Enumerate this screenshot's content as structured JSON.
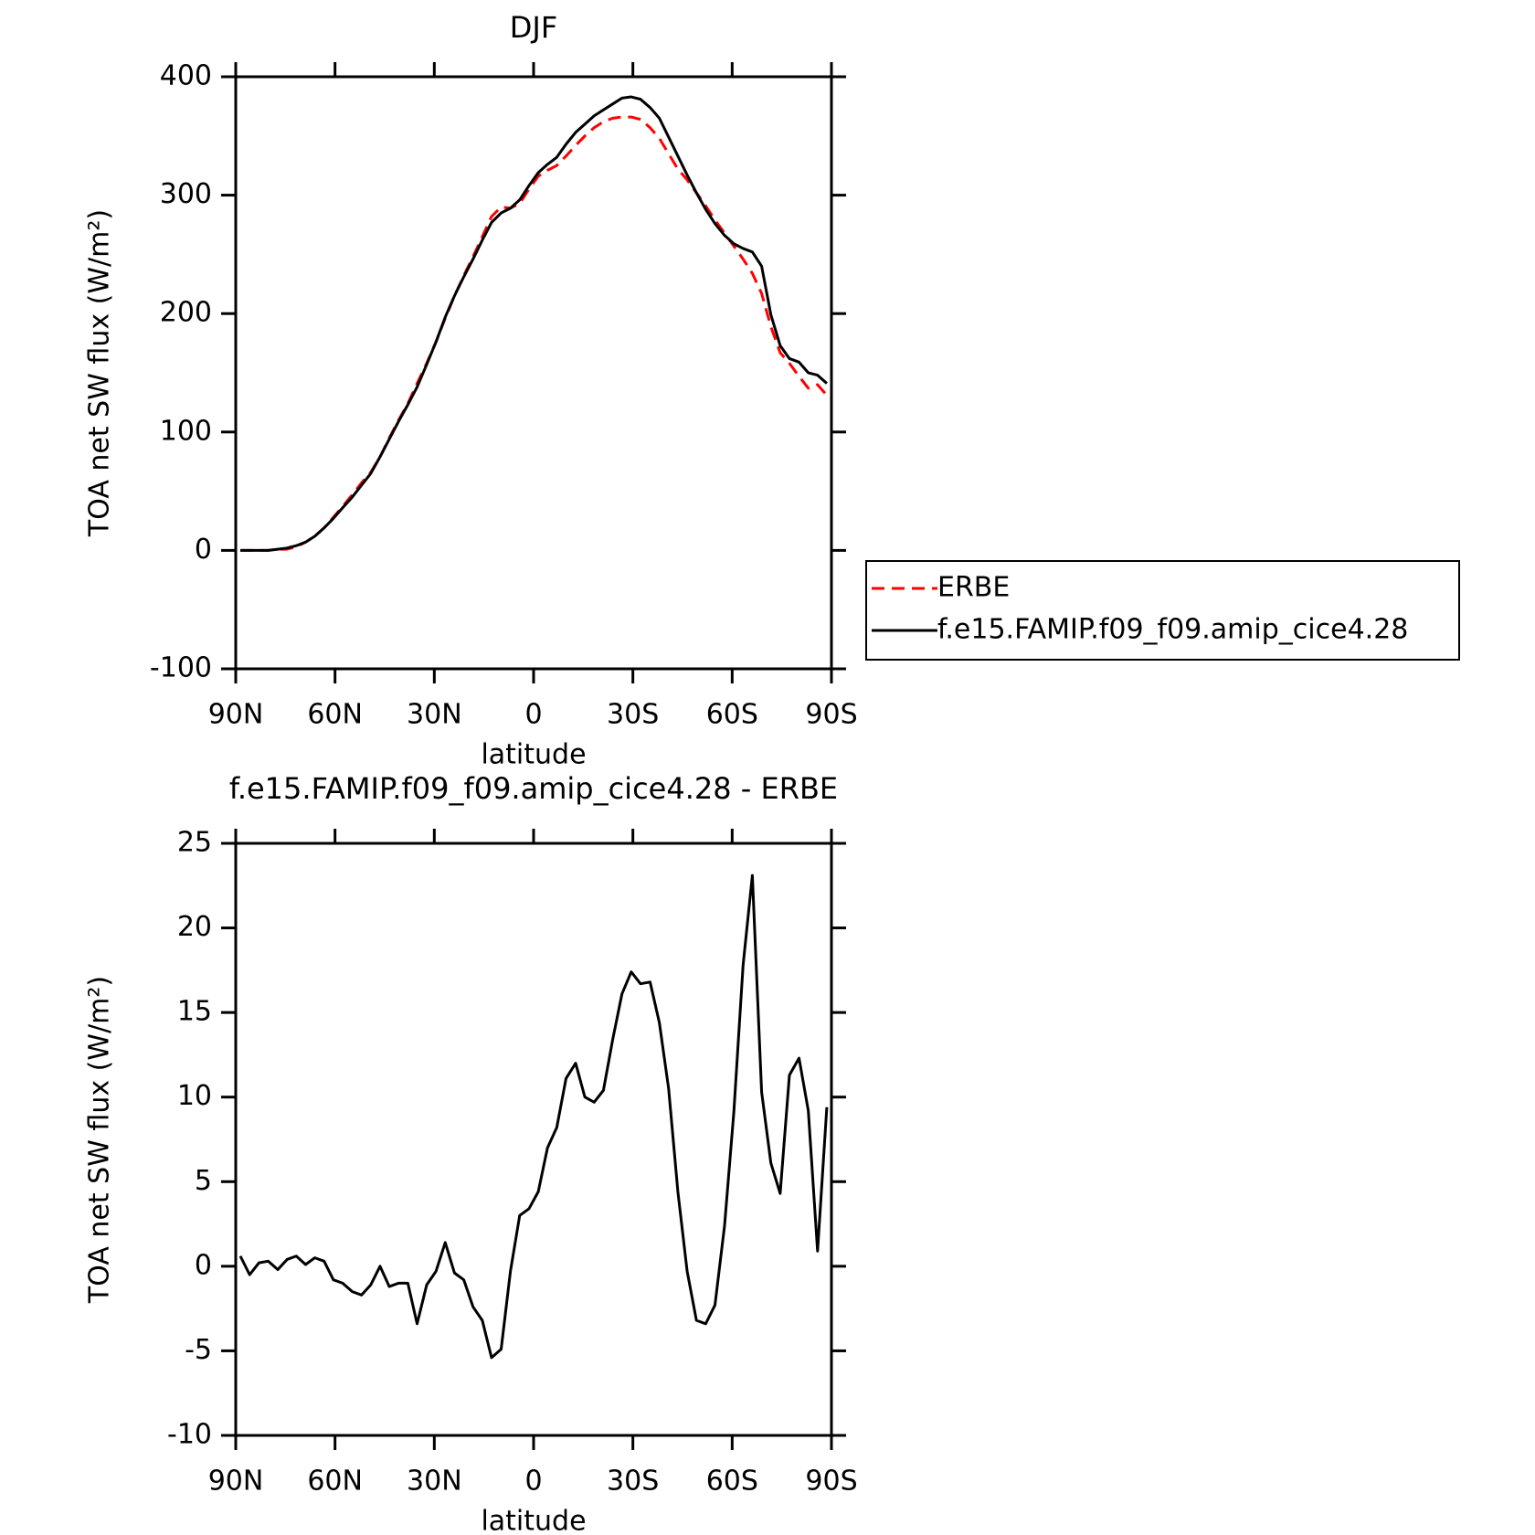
{
  "chart_data": [
    {
      "type": "line",
      "title": "DJF",
      "xlabel": "latitude",
      "ylabel": "TOA net SW flux (W/m²)",
      "x": [
        88.6,
        85.8,
        83.0,
        80.2,
        77.3,
        74.5,
        71.7,
        68.9,
        66.1,
        63.3,
        60.5,
        57.7,
        54.8,
        52.0,
        49.2,
        46.4,
        43.6,
        40.8,
        38.0,
        35.2,
        32.3,
        29.5,
        26.7,
        23.9,
        21.1,
        18.3,
        15.5,
        12.7,
        9.8,
        7.0,
        4.2,
        1.4,
        -1.4,
        -4.2,
        -7.0,
        -9.8,
        -12.7,
        -15.5,
        -18.3,
        -21.1,
        -23.9,
        -26.7,
        -29.5,
        -32.3,
        -35.2,
        -38.0,
        -40.8,
        -43.6,
        -46.4,
        -49.2,
        -52.0,
        -54.8,
        -57.7,
        -60.5,
        -63.3,
        -66.1,
        -68.9,
        -71.7,
        -74.5,
        -77.3,
        -80.2,
        -83.0,
        -85.8,
        -88.6
      ],
      "xlim": [
        90,
        -90
      ],
      "xticks": [
        {
          "value": 90,
          "label": "90N"
        },
        {
          "value": 60,
          "label": "60N"
        },
        {
          "value": 30,
          "label": "30N"
        },
        0,
        {
          "value": -30,
          "label": "30S"
        },
        {
          "value": -60,
          "label": "60S"
        },
        {
          "value": -90,
          "label": "90S"
        }
      ],
      "ylim": [
        -100,
        400
      ],
      "yticks": [
        -100,
        0,
        100,
        200,
        300,
        400
      ],
      "legend": "outside-right",
      "series": [
        {
          "name": "ERBE",
          "color": "#ff0000",
          "line_style": "dashed",
          "values": [
            0,
            0,
            0,
            0,
            1,
            1,
            3,
            7,
            12,
            19,
            28,
            37,
            47,
            57,
            66,
            79,
            95,
            110,
            124,
            141,
            158,
            176,
            196,
            215,
            232,
            248,
            265,
            282,
            290,
            289,
            293,
            305,
            316,
            321,
            325,
            333,
            342,
            350,
            357,
            362,
            365,
            366,
            366,
            364,
            357,
            348,
            335,
            322,
            313,
            302,
            291,
            279,
            268,
            257,
            246,
            234,
            217,
            189,
            167,
            158,
            147,
            137,
            140,
            131
          ]
        },
        {
          "name": "f.e15.FAMIP.f09_f09.amip_cice4.28",
          "color": "#000000",
          "line_style": "solid",
          "values": [
            0,
            0,
            0,
            0,
            1,
            2,
            4,
            7,
            12,
            19,
            27,
            36,
            45,
            55,
            65,
            79,
            94,
            109,
            123,
            138,
            157,
            176,
            197,
            215,
            231,
            246,
            262,
            277,
            285,
            289,
            296,
            308,
            319,
            326,
            332,
            343,
            353,
            360,
            367,
            372,
            377,
            382,
            383,
            381,
            374,
            365,
            349,
            333,
            317,
            302,
            288,
            276,
            266,
            259,
            255,
            252,
            240,
            199,
            173,
            162,
            159,
            150,
            148,
            141
          ]
        }
      ]
    },
    {
      "type": "line",
      "title": "f.e15.FAMIP.f09_f09.amip_cice4.28 - ERBE",
      "xlabel": "latitude",
      "ylabel": "TOA net SW flux (W/m²)",
      "x": [
        88.6,
        85.8,
        83.0,
        80.2,
        77.3,
        74.5,
        71.7,
        68.9,
        66.1,
        63.3,
        60.5,
        57.7,
        54.8,
        52.0,
        49.2,
        46.4,
        43.6,
        40.8,
        38.0,
        35.2,
        32.3,
        29.5,
        26.7,
        23.9,
        21.1,
        18.3,
        15.5,
        12.7,
        9.8,
        7.0,
        4.2,
        1.4,
        -1.4,
        -4.2,
        -7.0,
        -9.8,
        -12.7,
        -15.5,
        -18.3,
        -21.1,
        -23.9,
        -26.7,
        -29.5,
        -32.3,
        -35.2,
        -38.0,
        -40.8,
        -43.6,
        -46.4,
        -49.2,
        -52.0,
        -54.8,
        -57.7,
        -60.5,
        -63.3,
        -66.1,
        -68.9,
        -71.7,
        -74.5,
        -77.3,
        -80.2,
        -83.0,
        -85.8,
        -88.6
      ],
      "xlim": [
        90,
        -90
      ],
      "xticks": [
        {
          "value": 90,
          "label": "90N"
        },
        {
          "value": 60,
          "label": "60N"
        },
        {
          "value": 30,
          "label": "30N"
        },
        0,
        {
          "value": -30,
          "label": "30S"
        },
        {
          "value": -60,
          "label": "60S"
        },
        {
          "value": -90,
          "label": "90S"
        }
      ],
      "ylim": [
        -10,
        25
      ],
      "yticks": [
        -10,
        -5,
        0,
        5,
        10,
        15,
        20,
        25
      ],
      "color": "#000000",
      "values": [
        0.6,
        -0.5,
        0.2,
        0.3,
        -0.2,
        0.4,
        0.6,
        0.1,
        0.5,
        0.3,
        -0.8,
        -1.0,
        -1.5,
        -1.7,
        -1.1,
        0.0,
        -1.2,
        -1.0,
        -1.0,
        -3.4,
        -1.1,
        -0.3,
        1.4,
        -0.4,
        -0.8,
        -2.4,
        -3.2,
        -5.4,
        -4.9,
        -0.3,
        3.0,
        3.4,
        4.4,
        7.0,
        8.2,
        11.1,
        12.0,
        10.0,
        9.7,
        10.4,
        13.4,
        16.1,
        17.4,
        16.7,
        16.8,
        14.4,
        10.5,
        4.4,
        -0.3,
        -3.2,
        -3.4,
        -2.3,
        2.4,
        9.1,
        17.8,
        23.1,
        10.3,
        6.1,
        4.3,
        11.3,
        12.3,
        9.2,
        0.9,
        9.4
      ]
    }
  ]
}
